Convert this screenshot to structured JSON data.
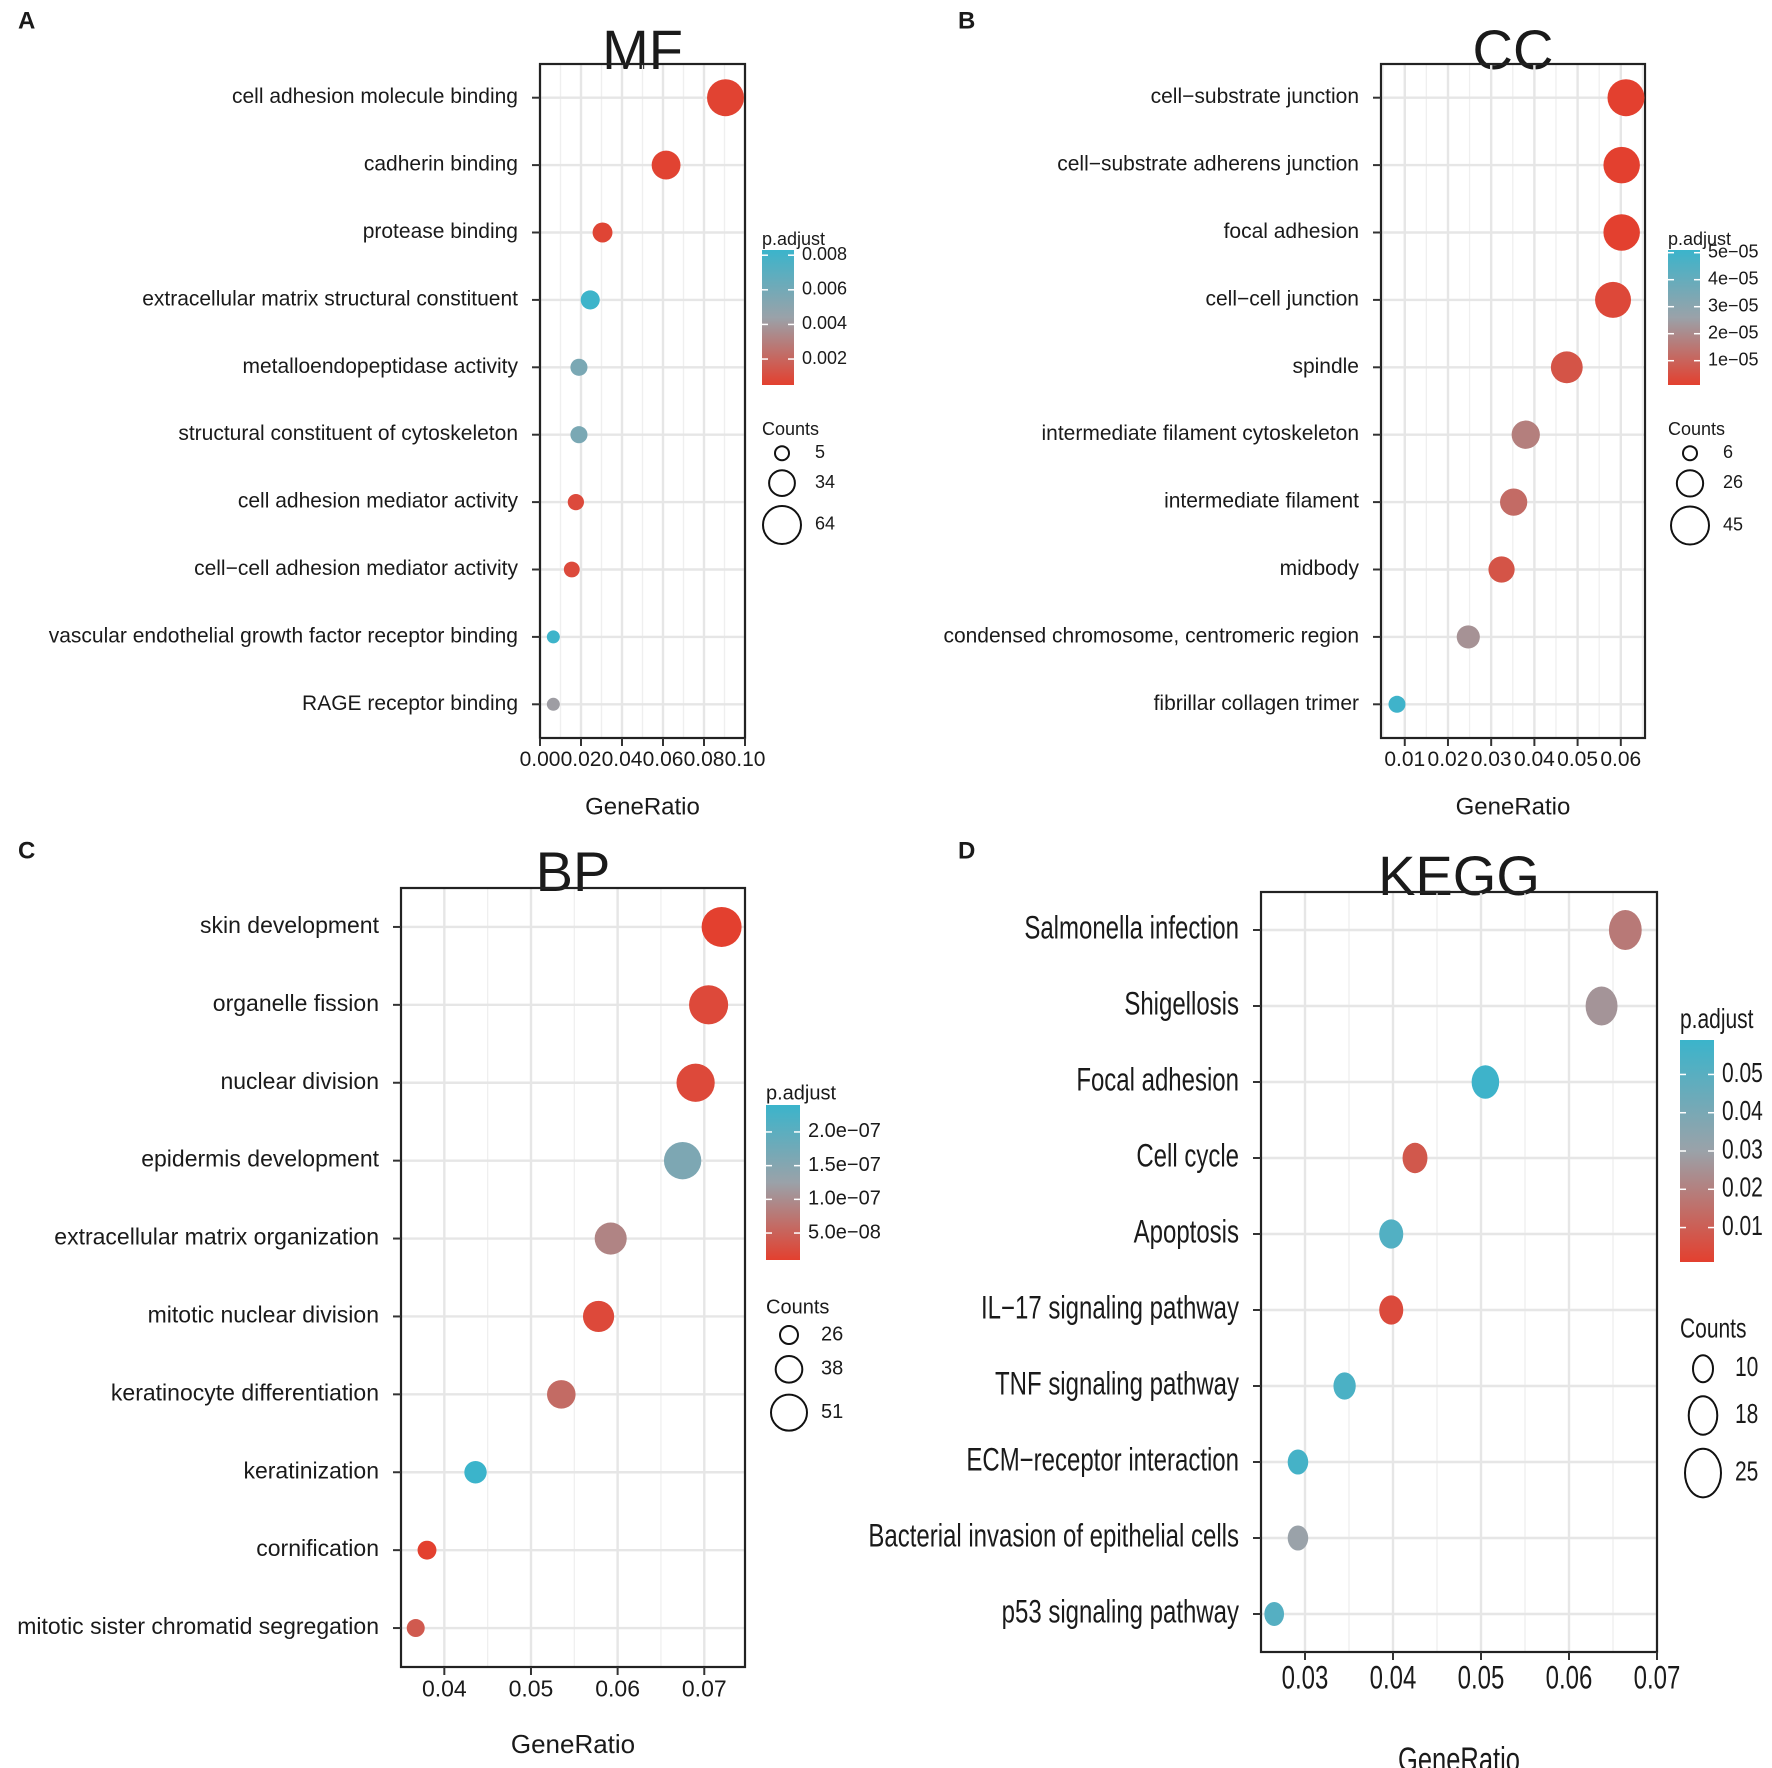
{
  "colors": {
    "low": "#e3402f",
    "mid": "#9aa2a9",
    "high": "#3bb4cb"
  },
  "chart_data": [
    {
      "panel": "A",
      "type": "scatter",
      "title": "MF",
      "xlabel": "GeneRatio",
      "ylabel": "",
      "xlim": [
        0.0,
        0.1
      ],
      "xticks": [
        0.0,
        0.02,
        0.04,
        0.06,
        0.08,
        0.1
      ],
      "xtick_labels": [
        "0.00",
        "0.02",
        "0.04",
        "0.06",
        "0.08",
        "0.10"
      ],
      "grid": true,
      "legend_position": "right",
      "color_legend": {
        "title": "p.adjust",
        "min": 0.0005,
        "max": 0.0083,
        "ticks": [
          0.008,
          0.006,
          0.004,
          0.002
        ],
        "labels": [
          "0.008",
          "0.006",
          "0.004",
          "0.002"
        ]
      },
      "size_legend": {
        "title": "Counts",
        "values": [
          5,
          34,
          64
        ],
        "labels": [
          "5",
          "34",
          "64"
        ]
      },
      "terms": [
        {
          "label": "cell adhesion molecule binding",
          "x": 0.0905,
          "count": 64,
          "padj": 0.0006
        },
        {
          "label": "cadherin binding",
          "x": 0.0615,
          "count": 44,
          "padj": 0.0006
        },
        {
          "label": "protease binding",
          "x": 0.0305,
          "count": 22,
          "padj": 0.0007
        },
        {
          "label": "extracellular matrix structural constituent",
          "x": 0.0245,
          "count": 20,
          "padj": 0.0082
        },
        {
          "label": "metalloendopeptidase activity",
          "x": 0.019,
          "count": 15,
          "padj": 0.0057
        },
        {
          "label": "structural constituent of cytoskeleton",
          "x": 0.019,
          "count": 15,
          "padj": 0.0057
        },
        {
          "label": "cell adhesion mediator activity",
          "x": 0.0175,
          "count": 13,
          "padj": 0.0009
        },
        {
          "label": "cell−cell adhesion mediator activity",
          "x": 0.0155,
          "count": 12,
          "padj": 0.0009
        },
        {
          "label": "vascular endothelial growth factor receptor binding",
          "x": 0.0065,
          "count": 5,
          "padj": 0.0082
        },
        {
          "label": "RAGE receptor binding",
          "x": 0.0065,
          "count": 5,
          "padj": 0.0042
        }
      ]
    },
    {
      "panel": "B",
      "type": "scatter",
      "title": "CC",
      "xlabel": "GeneRatio",
      "ylabel": "",
      "xlim": [
        0.0045,
        0.0656
      ],
      "xticks": [
        0.01,
        0.02,
        0.03,
        0.04,
        0.05,
        0.06
      ],
      "xtick_labels": [
        "0.01",
        "0.02",
        "0.03",
        "0.04",
        "0.05",
        "0.06"
      ],
      "grid": true,
      "legend_position": "right",
      "color_legend": {
        "title": "p.adjust",
        "min": 1e-06,
        "max": 5.1e-05,
        "ticks": [
          5e-05,
          4e-05,
          3e-05,
          2e-05,
          1e-05
        ],
        "labels": [
          "5e−05",
          "4e−05",
          "3e−05",
          "2e−05",
          "1e−05"
        ]
      },
      "size_legend": {
        "title": "Counts",
        "values": [
          6,
          26,
          45
        ],
        "labels": [
          "6",
          "26",
          "45"
        ]
      },
      "terms": [
        {
          "label": "cell−substrate junction",
          "x": 0.0612,
          "count": 45,
          "padj": 1e-06
        },
        {
          "label": "cell−substrate adherens junction",
          "x": 0.0602,
          "count": 44,
          "padj": 1e-06
        },
        {
          "label": "focal adhesion",
          "x": 0.0602,
          "count": 44,
          "padj": 1e-06
        },
        {
          "label": "cell−cell junction",
          "x": 0.0582,
          "count": 43,
          "padj": 3e-06
        },
        {
          "label": "spindle",
          "x": 0.0475,
          "count": 35,
          "padj": 6e-06
        },
        {
          "label": "intermediate filament cytoskeleton",
          "x": 0.038,
          "count": 28,
          "padj": 1.7e-05
        },
        {
          "label": "intermediate filament",
          "x": 0.0352,
          "count": 26,
          "padj": 1.2e-05
        },
        {
          "label": "midbody",
          "x": 0.0324,
          "count": 24,
          "padj": 6e-06
        },
        {
          "label": "condensed chromosome, centromeric region",
          "x": 0.0247,
          "count": 18,
          "padj": 2.2e-05
        },
        {
          "label": "fibrillar collagen trimer",
          "x": 0.0082,
          "count": 6,
          "padj": 5e-05
        }
      ]
    },
    {
      "panel": "C",
      "type": "scatter",
      "title": "BP",
      "xlabel": "GeneRatio",
      "ylabel": "",
      "xlim": [
        0.035,
        0.0747
      ],
      "xticks": [
        0.04,
        0.05,
        0.06,
        0.07
      ],
      "xtick_labels": [
        "0.04",
        "0.05",
        "0.06",
        "0.07"
      ],
      "grid": true,
      "legend_position": "right",
      "color_legend": {
        "title": "p.adjust",
        "min": 1e-08,
        "max": 2.4e-07,
        "ticks": [
          2e-07,
          1.5e-07,
          1e-07,
          5e-08
        ],
        "labels": [
          "2.0e−07",
          "1.5e−07",
          "1.0e−07",
          "5.0e−08"
        ]
      },
      "size_legend": {
        "title": "Counts",
        "values": [
          26,
          38,
          51
        ],
        "labels": [
          "26",
          "38",
          "51"
        ]
      },
      "terms": [
        {
          "label": "skin development",
          "x": 0.072,
          "count": 51,
          "padj": 1e-08
        },
        {
          "label": "organelle fission",
          "x": 0.0705,
          "count": 50,
          "padj": 2e-08
        },
        {
          "label": "nuclear division",
          "x": 0.069,
          "count": 49,
          "padj": 2e-08
        },
        {
          "label": "epidermis development",
          "x": 0.0675,
          "count": 48,
          "padj": 1.6e-07
        },
        {
          "label": "extracellular matrix organization",
          "x": 0.0592,
          "count": 42,
          "padj": 9e-08
        },
        {
          "label": "mitotic nuclear division",
          "x": 0.0578,
          "count": 41,
          "padj": 2e-08
        },
        {
          "label": "keratinocyte differentiation",
          "x": 0.0535,
          "count": 38,
          "padj": 6e-08
        },
        {
          "label": "keratinization",
          "x": 0.0436,
          "count": 31,
          "padj": 2.4e-07
        },
        {
          "label": "cornification",
          "x": 0.038,
          "count": 27,
          "padj": 1e-08
        },
        {
          "label": "mitotic sister chromatid segregation",
          "x": 0.0367,
          "count": 26,
          "padj": 4e-08
        }
      ]
    },
    {
      "panel": "D",
      "type": "scatter",
      "title": "KEGG",
      "xlabel": "GeneRatio",
      "ylabel": "",
      "xlim": [
        0.025,
        0.07
      ],
      "xticks": [
        0.03,
        0.04,
        0.05,
        0.06,
        0.07
      ],
      "xtick_labels": [
        "0.03",
        "0.04",
        "0.05",
        "0.06",
        "0.07"
      ],
      "grid": true,
      "legend_position": "right",
      "color_legend": {
        "title": "p.adjust",
        "min": 0.001,
        "max": 0.059,
        "ticks": [
          0.05,
          0.04,
          0.03,
          0.02,
          0.01
        ],
        "labels": [
          "0.05",
          "0.04",
          "0.03",
          "0.02",
          "0.01"
        ]
      },
      "size_legend": {
        "title": "Counts",
        "values": [
          10,
          18,
          25
        ],
        "labels": [
          "10",
          "18",
          "25"
        ]
      },
      "terms": [
        {
          "label": "Salmonella infection",
          "x": 0.0664,
          "count": 25,
          "padj": 0.018
        },
        {
          "label": "Shigellosis",
          "x": 0.0637,
          "count": 24,
          "padj": 0.026
        },
        {
          "label": "Focal adhesion",
          "x": 0.0505,
          "count": 19,
          "padj": 0.058
        },
        {
          "label": "Cell cycle",
          "x": 0.0425,
          "count": 16,
          "padj": 0.008
        },
        {
          "label": "Apoptosis",
          "x": 0.0398,
          "count": 15,
          "padj": 0.052
        },
        {
          "label": "IL−17 signaling pathway",
          "x": 0.0398,
          "count": 15,
          "padj": 0.004
        },
        {
          "label": "TNF signaling pathway",
          "x": 0.0345,
          "count": 13,
          "padj": 0.054
        },
        {
          "label": "ECM−receptor interaction",
          "x": 0.0292,
          "count": 11,
          "padj": 0.056
        },
        {
          "label": "Bacterial invasion of epithelial cells",
          "x": 0.0292,
          "count": 11,
          "padj": 0.03
        },
        {
          "label": "p53 signaling pathway",
          "x": 0.0265,
          "count": 10,
          "padj": 0.051
        }
      ]
    }
  ]
}
